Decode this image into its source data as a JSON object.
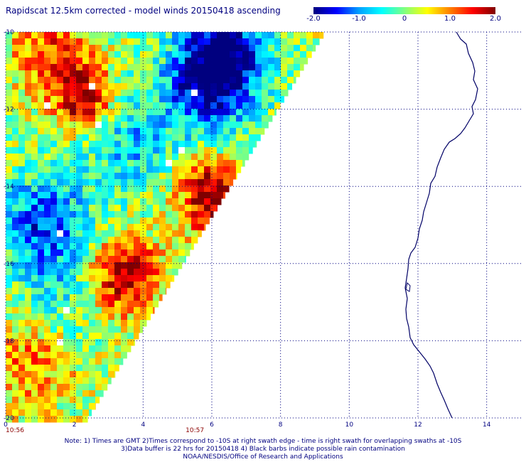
{
  "title": "Rapidscat 12.5km corrected - model winds 20150418 ascending",
  "colorbar": {
    "labels": [
      "-2.0",
      "-1.0",
      "0",
      "1.0",
      "2.0"
    ],
    "min": -2.0,
    "max": 2.0,
    "stops": [
      "#00007f",
      "#0000ff",
      "#00a0ff",
      "#00ffff",
      "#80ff80",
      "#ffff00",
      "#ff8000",
      "#ff0000",
      "#7f0000"
    ]
  },
  "axes": {
    "x_ticks": [
      "0",
      "2",
      "4",
      "6",
      "8",
      "10",
      "12",
      "14"
    ],
    "y_ticks": [
      "-10",
      "-12",
      "-14",
      "-16",
      "-18",
      "-20"
    ],
    "x_range": [
      0,
      15
    ],
    "y_range": [
      -10,
      -20
    ],
    "grid": "dotted"
  },
  "swath_times": [
    {
      "label": "10:56",
      "x": 0
    },
    {
      "label": "10:57",
      "x": 5.3
    }
  ],
  "coastline_color": "#000066",
  "notes": {
    "line1": "Note: 1) Times are GMT 2)Times correspond to -10S at right swath edge - time is right swath for overlapping swaths at -10S",
    "line2": "3)Data buffer is 22 hrs for 20150418 4) Black barbs indicate possible rain contamination",
    "line3": "NOAA/NESDIS/Office of Research and Applications"
  }
}
